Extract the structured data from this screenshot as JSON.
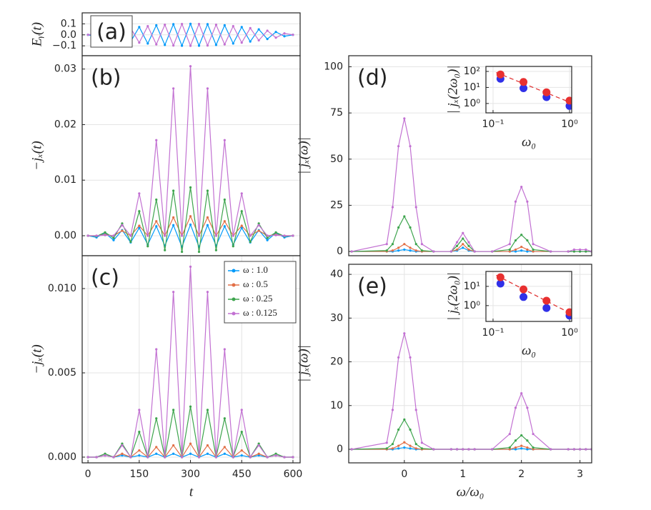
{
  "chart_data": [
    {
      "type": "line",
      "annotation": "(a)",
      "y_label": "Eᵧ(t)",
      "x": [
        0,
        25,
        50,
        75,
        100,
        125,
        150,
        175,
        200,
        225,
        250,
        275,
        300,
        325,
        350,
        375,
        400,
        425,
        450,
        475,
        500,
        525,
        550,
        575,
        600
      ],
      "xlim": [
        -17,
        621
      ],
      "ylim": [
        -0.19,
        0.2
      ],
      "yticks": [
        {
          "value": -0.1,
          "label": "−0.1"
        },
        {
          "value": 0,
          "label": "0.0"
        },
        0.1
      ],
      "grid": true,
      "series": [
        {
          "color": "#009afa",
          "values": [
            0,
            -0.013,
            0.026,
            -0.038,
            0.05,
            -0.061,
            0.071,
            -0.079,
            0.087,
            -0.092,
            0.097,
            -0.099,
            0.1,
            -0.099,
            0.097,
            -0.092,
            0.087,
            -0.079,
            0.071,
            -0.061,
            0.05,
            -0.038,
            0.026,
            -0.013,
            0
          ]
        },
        {
          "color": "#c371d2",
          "values": [
            0,
            0.013,
            -0.026,
            0.038,
            -0.05,
            0.061,
            -0.071,
            0.079,
            -0.087,
            0.092,
            -0.097,
            0.099,
            -0.1,
            0.099,
            -0.097,
            0.092,
            -0.087,
            0.079,
            -0.071,
            0.061,
            -0.05,
            0.038,
            -0.026,
            0.013,
            0
          ]
        }
      ]
    },
    {
      "type": "line",
      "annotation": "(b)",
      "y_label": "−jₓ(t)",
      "x": [
        0,
        25,
        50,
        75,
        100,
        125,
        150,
        175,
        200,
        225,
        250,
        275,
        300,
        325,
        350,
        375,
        400,
        425,
        450,
        475,
        500,
        525,
        550,
        575,
        600
      ],
      "xlim": [
        -17,
        621
      ],
      "ylim": [
        -0.0036,
        0.0324
      ],
      "yticks": [
        {
          "value": 0,
          "label": "0.00"
        },
        0.01,
        0.02,
        0.03
      ],
      "grid": true,
      "series": [
        {
          "color": "#009afa",
          "values": [
            0,
            -0.0003,
            0.0005,
            -0.0008,
            0.001,
            -0.0012,
            0.0014,
            -0.0016,
            0.0017,
            -0.0018,
            0.0019,
            -0.002,
            0.002,
            -0.002,
            0.0019,
            -0.0018,
            0.0017,
            -0.0016,
            0.0014,
            -0.0012,
            0.001,
            -0.0008,
            0.0005,
            -0.0003,
            0
          ]
        },
        {
          "color": "#e26f46",
          "values": [
            0,
            0,
            0.0002,
            0,
            0.0009,
            0,
            0.0018,
            0,
            0.0026,
            0,
            0.0033,
            0,
            0.0035,
            0,
            0.0033,
            0,
            0.0026,
            0,
            0.0018,
            0,
            0.0009,
            0,
            0.0002,
            0,
            0
          ]
        },
        {
          "color": "#3da44d",
          "values": [
            0,
            -0.0001,
            0.0006,
            -0.0004,
            0.0022,
            -0.0011,
            0.0044,
            -0.0019,
            0.0065,
            -0.0026,
            0.0081,
            -0.0029,
            0.0087,
            -0.0029,
            0.0081,
            -0.0026,
            0.0065,
            -0.0019,
            0.0044,
            -0.0011,
            0.0022,
            -0.0004,
            0.0006,
            -0.0001,
            0
          ]
        },
        {
          "color": "#c271d2",
          "values": [
            0,
            0,
            0.0001,
            0,
            0.0019,
            0,
            0.0076,
            0,
            0.0172,
            0,
            0.0265,
            0,
            0.0305,
            0,
            0.0265,
            0,
            0.0172,
            0,
            0.0076,
            0,
            0.0019,
            0,
            0.0001,
            0,
            0
          ]
        }
      ]
    },
    {
      "type": "line",
      "annotation": "(c)",
      "y_label": "−jₓ(t)",
      "x_label": "t",
      "x": [
        0,
        25,
        50,
        75,
        100,
        125,
        150,
        175,
        200,
        225,
        250,
        275,
        300,
        325,
        350,
        375,
        400,
        425,
        450,
        475,
        500,
        525,
        550,
        575,
        600
      ],
      "xlim": [
        -17,
        621
      ],
      "ylim": [
        -0.00034,
        0.01195
      ],
      "xticks": [
        0,
        150,
        300,
        450,
        600
      ],
      "yticks": [
        {
          "value": 0,
          "label": "0.000"
        },
        0.005,
        {
          "value": 0.01,
          "label": "0.010"
        }
      ],
      "grid": true,
      "legend": "upper right",
      "series": [
        {
          "name": "ω : 1.0",
          "color": "#009afa",
          "values": [
            0,
            0,
            0.0001,
            0,
            0.0001,
            0,
            0.0001,
            0,
            0.0002,
            0,
            0.0002,
            0,
            0.0002,
            0,
            0.0002,
            0,
            0.0002,
            0,
            0.0001,
            0,
            0.0001,
            0,
            0.0001,
            0,
            0
          ]
        },
        {
          "name": "ω : 0.5",
          "color": "#e26f46",
          "values": [
            0,
            0,
            0.0001,
            0,
            0.0002,
            0,
            0.0004,
            0,
            0.0006,
            0,
            0.0007,
            0,
            0.0008,
            0,
            0.0007,
            0,
            0.0006,
            0,
            0.0004,
            0,
            0.0002,
            0,
            0.0001,
            0,
            0
          ]
        },
        {
          "name": "ω : 0.25",
          "color": "#3da44d",
          "values": [
            0,
            0,
            0.0002,
            0,
            0.0008,
            0,
            0.0015,
            0,
            0.0023,
            0,
            0.0028,
            0,
            0.003,
            0,
            0.0028,
            0,
            0.0023,
            0,
            0.0015,
            0,
            0.0008,
            0,
            0.0002,
            0,
            0
          ]
        },
        {
          "name": "ω : 0.125",
          "color": "#c271d2",
          "values": [
            0,
            0,
            0.0001,
            0,
            0.0007,
            0,
            0.0028,
            0,
            0.0064,
            0,
            0.0098,
            0,
            0.0113,
            0,
            0.0098,
            0,
            0.0064,
            0,
            0.0028,
            0,
            0.0007,
            0,
            0.0001,
            0,
            0
          ]
        }
      ]
    },
    {
      "type": "line",
      "annotation": "(d)",
      "y_label": "| jₓ(ω)|",
      "x": [
        -0.9,
        -0.3,
        -0.2,
        -0.1,
        0,
        0.1,
        0.2,
        0.3,
        0.5,
        0.8,
        0.9,
        1,
        1.1,
        1.2,
        1.5,
        1.8,
        1.9,
        2,
        2.1,
        2.2,
        2.5,
        2.8,
        2.9,
        3,
        3.1,
        3.2
      ],
      "xlim": [
        -0.95,
        3.2
      ],
      "ylim": [
        -2.3,
        106
      ],
      "yticks": [
        0,
        25,
        50,
        75,
        100
      ],
      "grid": true,
      "series": [
        {
          "color": "#009afa",
          "values": [
            0,
            0,
            0,
            0.5,
            1,
            0.5,
            0,
            0,
            0,
            0,
            0.5,
            2,
            0.5,
            0,
            0,
            0,
            0,
            0.5,
            0,
            0,
            0,
            0,
            0,
            0,
            0,
            0
          ]
        },
        {
          "color": "#e26f46",
          "values": [
            0,
            0,
            0.5,
            2,
            4,
            2,
            0.5,
            0,
            0,
            0,
            1,
            4,
            1,
            0,
            0,
            0,
            1,
            2.5,
            1,
            0,
            0,
            0,
            0,
            0,
            0,
            0
          ]
        },
        {
          "color": "#3da44d",
          "values": [
            0,
            0.5,
            4,
            13,
            19,
            13,
            4,
            0.5,
            0,
            0,
            3,
            7,
            3,
            0,
            0,
            1,
            6,
            9,
            6,
            1,
            0,
            0,
            0,
            0,
            0,
            0
          ]
        },
        {
          "color": "#c271d2",
          "values": [
            0,
            4,
            24,
            57,
            72,
            57,
            24,
            4,
            0,
            0,
            5,
            10,
            5,
            0,
            0,
            4,
            27,
            35,
            27,
            4,
            0,
            0,
            1,
            1,
            1,
            0
          ]
        }
      ]
    },
    {
      "type": "scatter",
      "x_label": "ω₀",
      "y_label": "| jₓ(2ω₀)|",
      "xscale": "log",
      "yscale": "log",
      "xlim": [
        0.0807,
        1.067
      ],
      "ylim": [
        0.26,
        205
      ],
      "xticks": [
        {
          "value": 0.1,
          "label": "10⁻¹"
        },
        {
          "value": 1,
          "label": "10⁰"
        }
      ],
      "yticks": [
        {
          "value": 1,
          "label": "10⁰"
        },
        {
          "value": 10,
          "label": "10¹"
        },
        {
          "value": 100,
          "label": "10²"
        }
      ],
      "grid": true,
      "series": [
        {
          "color": "#e03030",
          "linestyle": "dashed",
          "x": [
            0.11,
            1.05
          ],
          "values": [
            85,
            1.1
          ]
        },
        {
          "color": "#3030e8",
          "x": [
            0.125,
            0.25,
            0.5,
            1
          ],
          "values": [
            35,
            9,
            2.5,
            0.7
          ]
        },
        {
          "color": "#e83030",
          "x": [
            0.125,
            0.25,
            0.5,
            1
          ],
          "values": [
            65,
            22,
            5,
            1.5
          ]
        }
      ]
    },
    {
      "type": "line",
      "annotation": "(e)",
      "y_label": "| jₓ(ω)|",
      "x_label": "ω/ω₀",
      "x": [
        -0.9,
        -0.3,
        -0.2,
        -0.1,
        0,
        0.1,
        0.2,
        0.3,
        0.5,
        0.8,
        0.9,
        1,
        1.1,
        1.2,
        1.5,
        1.8,
        1.9,
        2,
        2.1,
        2.2,
        2.5,
        2.8,
        2.9,
        3,
        3.1,
        3.2
      ],
      "xlim": [
        -0.95,
        3.2
      ],
      "ylim": [
        -3.1,
        42.3
      ],
      "xticks": [
        0,
        1,
        2,
        3
      ],
      "yticks": [
        0,
        10,
        20,
        30,
        40
      ],
      "grid": true,
      "series": [
        {
          "color": "#009afa",
          "values": [
            0,
            0,
            0,
            0.2,
            0.4,
            0.2,
            0,
            0,
            0,
            0,
            0,
            0,
            0,
            0,
            0,
            0,
            0,
            0.2,
            0,
            0,
            0,
            0,
            0,
            0,
            0,
            0
          ]
        },
        {
          "color": "#e26f46",
          "values": [
            0,
            0,
            0.2,
            0.8,
            1.6,
            0.8,
            0.2,
            0,
            0,
            0,
            0,
            0,
            0,
            0,
            0,
            0,
            0.4,
            0.8,
            0.4,
            0,
            0,
            0,
            0,
            0,
            0,
            0
          ]
        },
        {
          "color": "#3da44d",
          "values": [
            0,
            0.2,
            1.2,
            4.5,
            6.8,
            4.5,
            1.2,
            0.2,
            0,
            0,
            0,
            0,
            0,
            0,
            0,
            0.4,
            2,
            3.2,
            2,
            0.4,
            0,
            0,
            0,
            0,
            0,
            0
          ]
        },
        {
          "color": "#c271d2",
          "values": [
            0,
            1.5,
            9,
            21,
            26.5,
            21,
            9,
            1.5,
            0,
            0,
            0,
            0,
            0,
            0,
            0,
            3.5,
            9.5,
            12.8,
            9.5,
            3.5,
            0,
            0,
            0,
            0,
            0,
            0
          ]
        }
      ]
    },
    {
      "type": "scatter",
      "x_label": "ω₀",
      "y_label": "| jₓ(2ω₀)|",
      "xscale": "log",
      "yscale": "log",
      "xlim": [
        0.0807,
        1.067
      ],
      "ylim": [
        0.15,
        60
      ],
      "xticks": [
        {
          "value": 0.1,
          "label": "10⁻¹"
        },
        {
          "value": 1,
          "label": "10⁰"
        }
      ],
      "yticks": [
        {
          "value": 1,
          "label": "10⁰"
        },
        {
          "value": 10,
          "label": "10¹"
        }
      ],
      "grid": true,
      "series": [
        {
          "color": "#e03030",
          "linestyle": "dashed",
          "x": [
            0.11,
            1.05
          ],
          "values": [
            38,
            0.38
          ]
        },
        {
          "color": "#3030e8",
          "x": [
            0.125,
            0.25,
            0.5,
            1
          ],
          "values": [
            14,
            2.8,
            0.75,
            0.3
          ]
        },
        {
          "color": "#e83030",
          "x": [
            0.125,
            0.25,
            0.5,
            1
          ],
          "values": [
            30,
            7,
            1.8,
            0.45
          ]
        }
      ]
    }
  ]
}
